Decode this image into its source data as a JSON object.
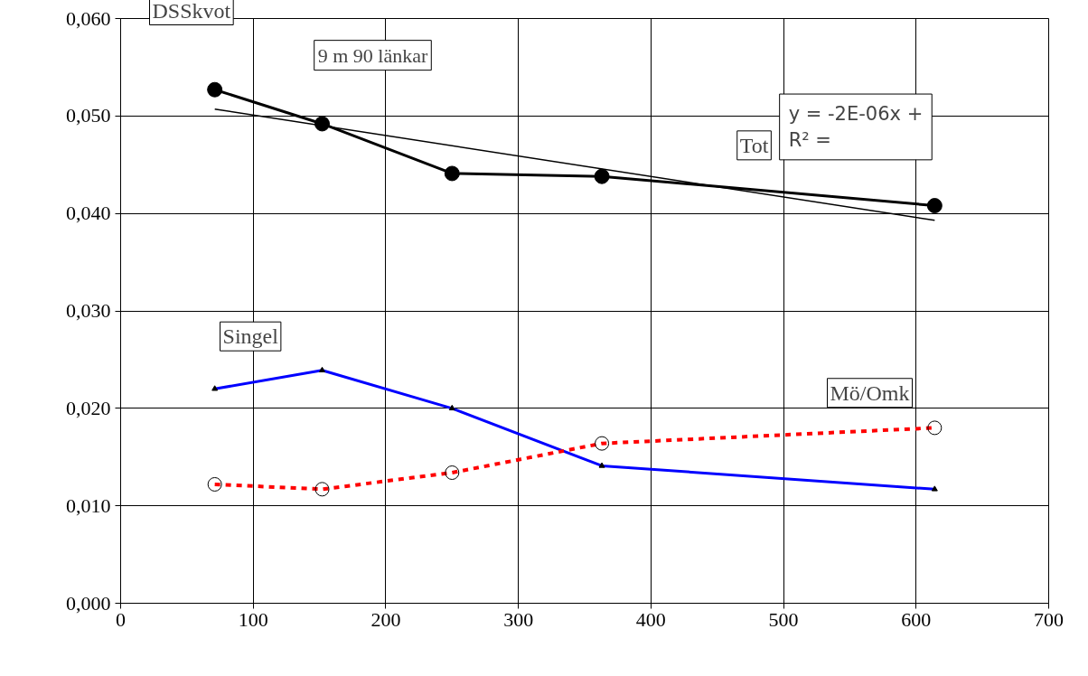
{
  "chart_data": {
    "type": "line",
    "annotations": [
      "DSSkvot",
      "9 m 90 länkar",
      "y = -2E-06x +",
      "R² ="
    ],
    "x": [
      71,
      152,
      250,
      363,
      614
    ],
    "series": [
      {
        "name": "Tot",
        "color": "#000000",
        "values": [
          0.0527,
          0.0492,
          0.0441,
          0.0438,
          0.0408
        ],
        "marker": "circle",
        "line_style": "solid"
      },
      {
        "name": "Singel",
        "color": "#0000ff",
        "values": [
          0.022,
          0.0239,
          0.02,
          0.0141,
          0.0117
        ],
        "marker": "triangle",
        "line_style": "solid"
      },
      {
        "name": "Mö/Omk",
        "color": "#ff0000",
        "values": [
          0.0122,
          0.0117,
          0.0134,
          0.0164,
          0.018
        ],
        "marker": "circle_open",
        "line_style": "dashed"
      },
      {
        "type": "line",
        "x": [
          71,
          614
        ],
        "color": "#000000",
        "values": [
          0.0507,
          0.0393
        ],
        "marker": "none",
        "line_style": "solid"
      }
    ],
    "xlim": [
      0,
      700
    ],
    "xticks": [
      0,
      100,
      200,
      300,
      400,
      500,
      600,
      700
    ],
    "ylim": [
      0,
      0.06
    ],
    "yticks": [
      {
        "value": 0,
        "label": "0,000"
      },
      {
        "value": 0.01,
        "label": "0,010"
      },
      {
        "value": 0.02,
        "label": "0,020"
      },
      {
        "value": 0.03,
        "label": "0,030"
      },
      {
        "value": 0.04,
        "label": "0,040"
      },
      {
        "value": 0.05,
        "label": "0,050"
      },
      {
        "value": 0.06,
        "label": "0,060"
      }
    ],
    "grid": true
  }
}
